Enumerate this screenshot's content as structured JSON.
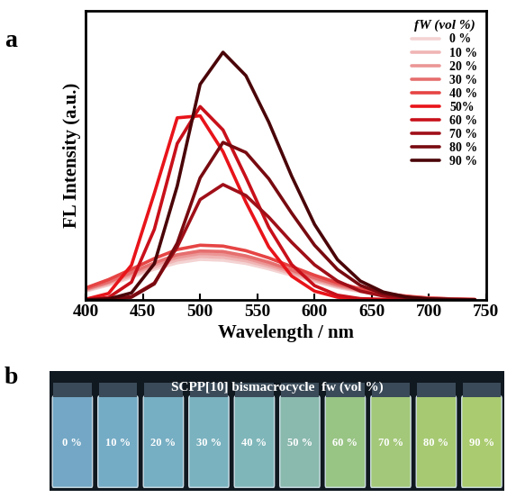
{
  "chart_data": {
    "type": "line",
    "panel_label": "a",
    "x_label": "Wavelength / nm",
    "y_label": "FL Intensity (a.u.)",
    "legend_title": "fW (vol %)",
    "legend": "upper right",
    "tick_labels": "x",
    "xlim": [
      400,
      750
    ],
    "xticks": [
      400,
      450,
      500,
      550,
      600,
      650,
      700,
      750
    ],
    "ylim": [
      0,
      100
    ],
    "yticks": [],
    "x": [
      400,
      420,
      440,
      460,
      480,
      500,
      520,
      540,
      560,
      580,
      600,
      620,
      640,
      660,
      680,
      700,
      720,
      740
    ],
    "series": [
      {
        "name": "0 %",
        "color": "#f4d3d3",
        "values": [
          3.0,
          5.1,
          7.8,
          10.6,
          12.8,
          14.0,
          13.7,
          12.6,
          10.7,
          8.5,
          6.3,
          4.3,
          2.8,
          1.7,
          0.9,
          0.5,
          0.2,
          0.1
        ]
      },
      {
        "name": "10 %",
        "color": "#f0b5b5",
        "values": [
          3.2,
          5.5,
          8.3,
          11.3,
          13.8,
          15.0,
          14.7,
          13.5,
          11.5,
          9.1,
          6.7,
          4.6,
          3.0,
          1.8,
          1.0,
          0.5,
          0.2,
          0.1
        ]
      },
      {
        "name": "20 %",
        "color": "#ec9696",
        "values": [
          3.5,
          5.9,
          8.9,
          12.1,
          14.7,
          16.0,
          15.7,
          14.4,
          12.2,
          9.7,
          7.2,
          4.9,
          3.2,
          1.9,
          1.1,
          0.5,
          0.3,
          0.1
        ]
      },
      {
        "name": "30 %",
        "color": "#e66e6e",
        "values": [
          3.7,
          6.2,
          9.5,
          12.8,
          15.6,
          16.9,
          16.7,
          15.2,
          13.0,
          10.3,
          7.6,
          5.3,
          3.4,
          2.0,
          1.1,
          0.6,
          0.3,
          0.1
        ]
      },
      {
        "name": "40 %",
        "color": "#e64444",
        "values": [
          4.1,
          7.0,
          10.6,
          14.3,
          17.4,
          18.9,
          18.6,
          17.0,
          14.5,
          11.5,
          8.5,
          5.9,
          3.8,
          2.2,
          1.3,
          0.6,
          0.3,
          0.1
        ]
      },
      {
        "name": "50%",
        "color": "#e8141a",
        "values": [
          0.2,
          2.2,
          12.0,
          36.9,
          63.0,
          63.7,
          51.3,
          33.8,
          18.3,
          8.2,
          3.0,
          0.9,
          0.2,
          0.1,
          0.0,
          0.0,
          0.0,
          0.0
        ]
      },
      {
        "name": "60 %",
        "color": "#c8101a",
        "values": [
          0.1,
          0.8,
          6.1,
          24.4,
          54.1,
          66.9,
          58.8,
          42.4,
          25.1,
          12.2,
          4.9,
          1.6,
          0.4,
          0.1,
          0.0,
          0.0,
          0.0,
          0.0
        ]
      },
      {
        "name": "70 %",
        "color": "#a00f18",
        "values": [
          0.0,
          0.1,
          1.1,
          5.8,
          18.3,
          34.7,
          39.9,
          36.1,
          28.6,
          19.9,
          12.1,
          6.5,
          3.0,
          1.3,
          0.5,
          0.1,
          0.0,
          0.0
        ]
      },
      {
        "name": "80 %",
        "color": "#780a10",
        "values": [
          0.0,
          0.1,
          0.9,
          5.5,
          19.6,
          42.2,
          54.5,
          51.0,
          41.9,
          30.0,
          18.9,
          10.5,
          5.0,
          2.1,
          0.8,
          0.3,
          0.1,
          0.0
        ]
      },
      {
        "name": "90 %",
        "color": "#4a0508",
        "values": [
          0.0,
          0.3,
          2.4,
          12.5,
          39.4,
          74.6,
          85.7,
          77.6,
          61.5,
          42.8,
          26.1,
          13.9,
          6.5,
          2.7,
          1.0,
          0.3,
          0.1,
          0.0
        ]
      }
    ]
  },
  "photo": {
    "panel_label": "b",
    "title": "SCPP[10] bismacrocycle  fw (vol %)",
    "labels": [
      "0 %",
      "10 %",
      "20 %",
      "30 %",
      "40 %",
      "50 %",
      "60 %",
      "70 %",
      "80 %",
      "90 %"
    ]
  }
}
